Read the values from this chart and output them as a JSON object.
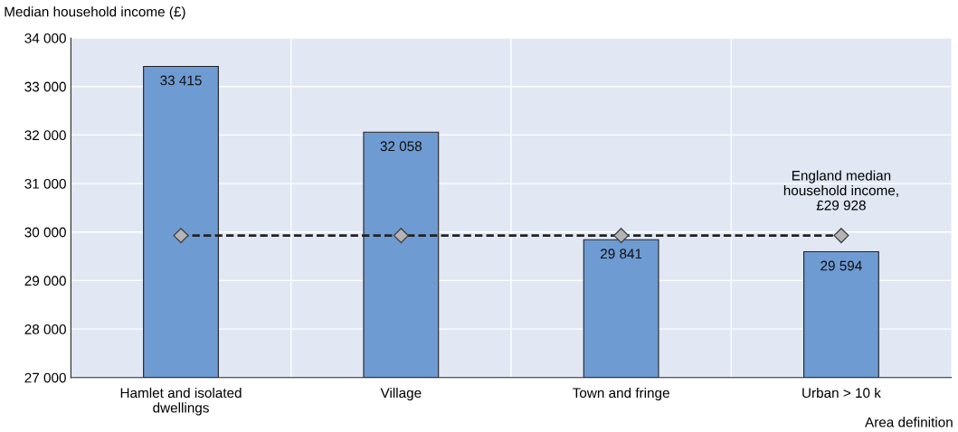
{
  "chart_data": {
    "type": "bar",
    "ylabel": "Median household income (£)",
    "xlabel": "Area definition",
    "categories": [
      "Hamlet and isolated\ndwellings",
      "Village",
      "Town and fringe",
      "Urban > 10 k"
    ],
    "series": [
      {
        "color": "#6f9bd3",
        "values": [
          33415,
          32058,
          29841,
          29594
        ],
        "value_labels": [
          "33 415",
          "32 058",
          "29 841",
          "29 594"
        ]
      },
      {
        "type": "line",
        "color": "#b4b4b4",
        "values": [
          29928,
          29928,
          29928,
          29928
        ],
        "marker": "diamond",
        "line_style": "dashed"
      }
    ],
    "ylim": [
      27000,
      34000
    ],
    "yticks": [
      {
        "value": 27000,
        "label": "27 000"
      },
      {
        "value": 28000,
        "label": "28 000"
      },
      {
        "value": 29000,
        "label": "29 000"
      },
      {
        "value": 30000,
        "label": "30 000"
      },
      {
        "value": 31000,
        "label": "31 000"
      },
      {
        "value": 32000,
        "label": "32 000"
      },
      {
        "value": 33000,
        "label": "33 000"
      },
      {
        "value": 34000,
        "label": "34 000"
      }
    ],
    "grid": true,
    "legend": false,
    "annotations": [
      {
        "text": "England median\nhousehold income,\n£29 928",
        "x": "Urban > 10 k",
        "y": 29928
      }
    ]
  }
}
